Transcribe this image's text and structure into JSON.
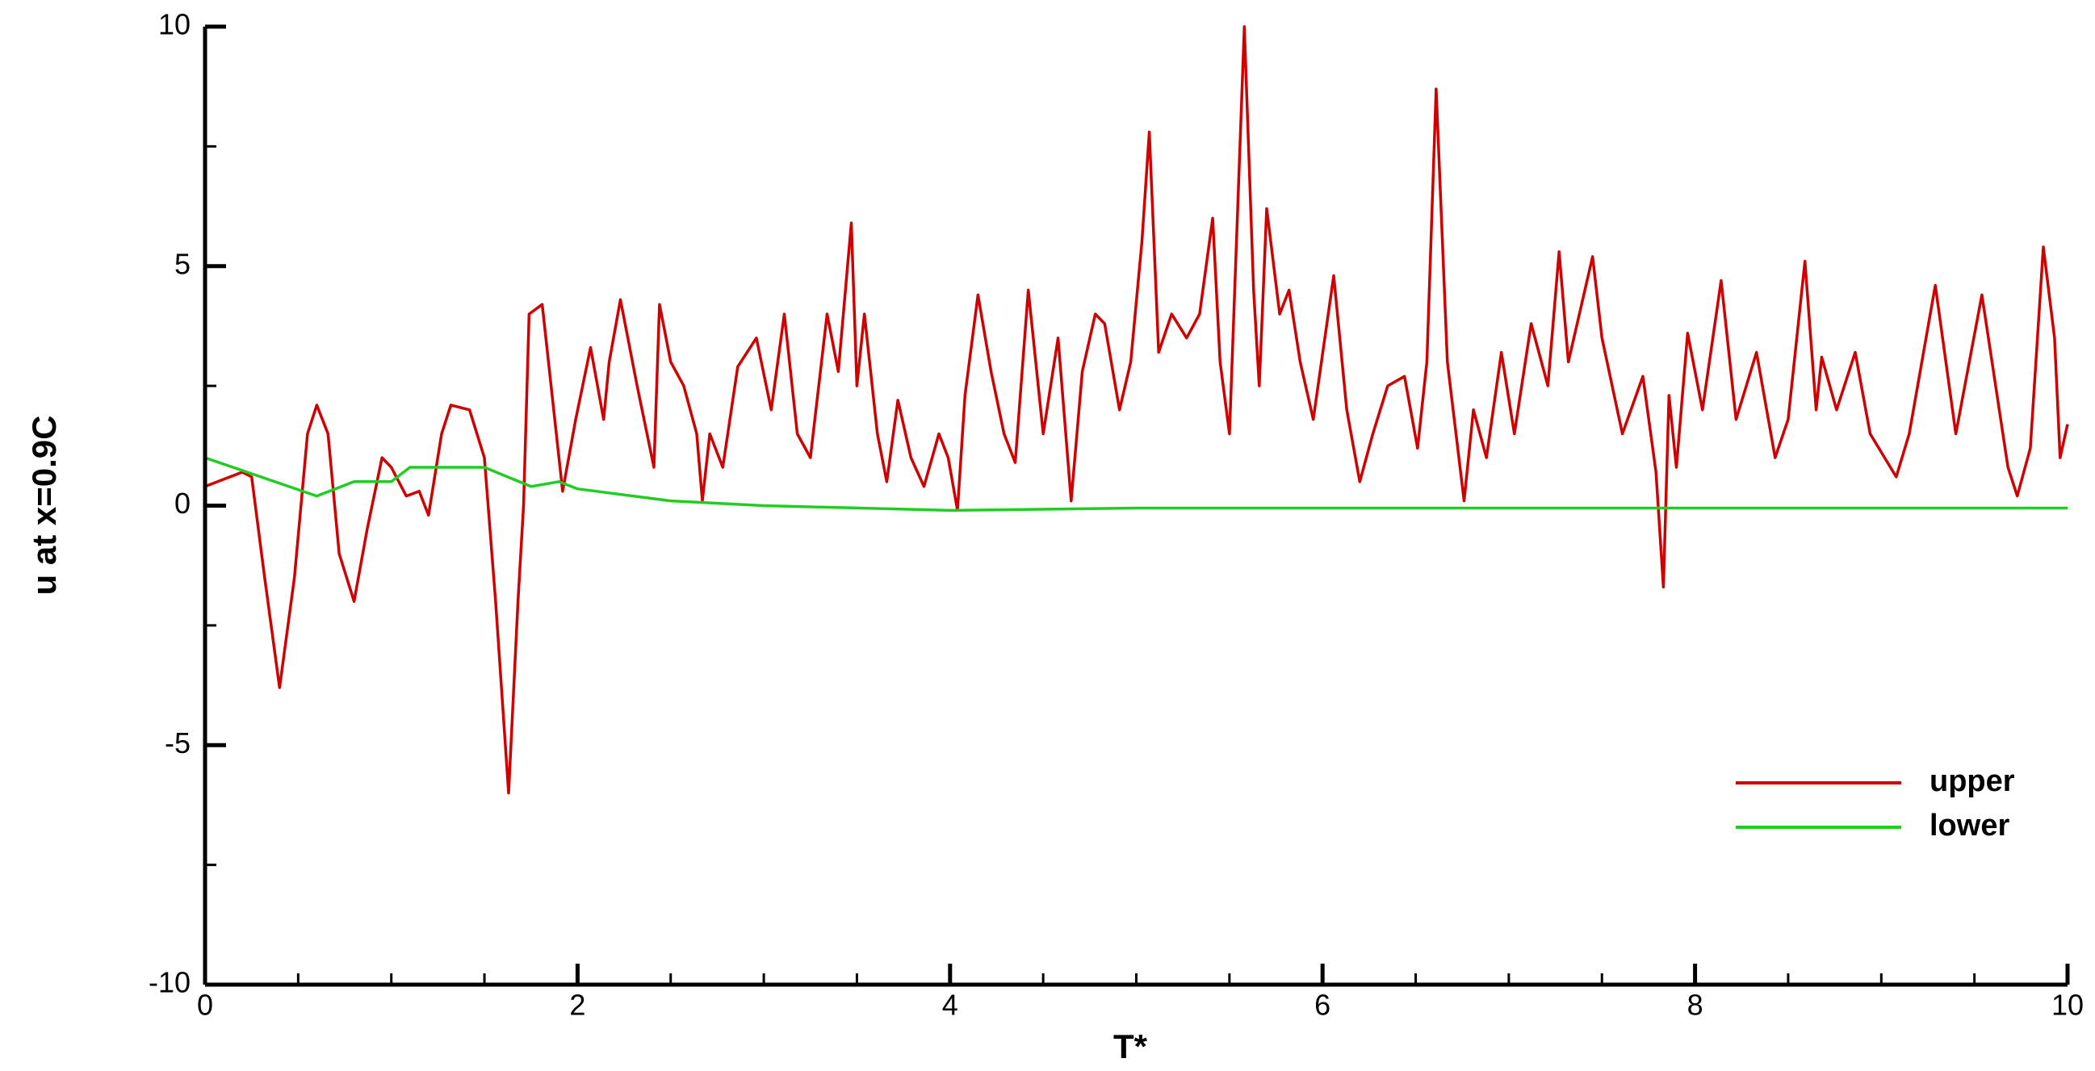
{
  "chart_data": {
    "type": "line",
    "x_label": "T*",
    "y_label": "u at x=0.9C",
    "xlim": [
      0,
      10
    ],
    "ylim": [
      -10,
      10
    ],
    "xticks": [
      0,
      2,
      4,
      6,
      8,
      10
    ],
    "yticks": [
      -10,
      -5,
      0,
      5,
      10
    ],
    "minor_xticks": [
      0.5,
      1,
      1.5,
      2.5,
      3,
      3.5,
      4.5,
      5,
      5.5,
      6.5,
      7,
      7.5,
      8.5,
      9,
      9.5
    ],
    "minor_yticks": [
      -7.5,
      -2.5,
      2.5,
      7.5
    ],
    "legend_position": "lower right",
    "series": [
      {
        "name": "upper",
        "color": "#d00000",
        "x": [
          0,
          0.2,
          0.25,
          0.32,
          0.4,
          0.48,
          0.55,
          0.6,
          0.66,
          0.72,
          0.8,
          0.87,
          0.95,
          1.0,
          1.08,
          1.15,
          1.2,
          1.27,
          1.32,
          1.42,
          1.5,
          1.56,
          1.63,
          1.68,
          1.71,
          1.74,
          1.81,
          1.92,
          1.99,
          2.07,
          2.14,
          2.17,
          2.23,
          2.32,
          2.41,
          2.44,
          2.5,
          2.57,
          2.64,
          2.67,
          2.71,
          2.78,
          2.86,
          2.96,
          3.04,
          3.11,
          3.18,
          3.25,
          3.34,
          3.4,
          3.47,
          3.5,
          3.54,
          3.61,
          3.66,
          3.72,
          3.79,
          3.86,
          3.94,
          3.99,
          4.04,
          4.08,
          4.15,
          4.22,
          4.29,
          4.35,
          4.42,
          4.5,
          4.58,
          4.65,
          4.71,
          4.78,
          4.83,
          4.91,
          4.97,
          5.03,
          5.07,
          5.12,
          5.19,
          5.27,
          5.34,
          5.41,
          5.45,
          5.5,
          5.58,
          5.63,
          5.66,
          5.7,
          5.77,
          5.82,
          5.88,
          5.95,
          6.06,
          6.13,
          6.2,
          6.27,
          6.35,
          6.44,
          6.51,
          6.56,
          6.61,
          6.67,
          6.76,
          6.81,
          6.88,
          6.96,
          7.03,
          7.12,
          7.21,
          7.27,
          7.32,
          7.45,
          7.5,
          7.61,
          7.72,
          7.79,
          7.83,
          7.86,
          7.9,
          7.96,
          8.04,
          8.14,
          8.22,
          8.33,
          8.43,
          8.5,
          8.59,
          8.65,
          8.68,
          8.76,
          8.86,
          8.94,
          9.08,
          9.15,
          9.29,
          9.4,
          9.54,
          9.68,
          9.73,
          9.8,
          9.87,
          9.93,
          9.96,
          10
        ],
        "values": [
          0.4,
          0.7,
          0.6,
          -1.5,
          -3.8,
          -1.5,
          1.5,
          2.1,
          1.5,
          -1.0,
          -2.0,
          -0.5,
          1.0,
          0.8,
          0.2,
          0.3,
          -0.2,
          1.5,
          2.1,
          2.0,
          1.0,
          -2.0,
          -6.0,
          -2.0,
          0,
          4.0,
          4.2,
          0.3,
          1.8,
          3.3,
          1.8,
          3.0,
          4.3,
          2.5,
          0.8,
          4.2,
          3.0,
          2.5,
          1.5,
          0.1,
          1.5,
          0.8,
          2.9,
          3.5,
          2.0,
          4.0,
          1.5,
          1.0,
          4.0,
          2.8,
          5.9,
          2.5,
          4.0,
          1.5,
          0.5,
          2.2,
          1.0,
          0.4,
          1.5,
          1.0,
          -0.1,
          2.3,
          4.4,
          2.8,
          1.5,
          0.9,
          4.5,
          1.5,
          3.5,
          0.1,
          2.8,
          4.0,
          3.8,
          2.0,
          3.0,
          5.5,
          7.8,
          3.2,
          4.0,
          3.5,
          4.0,
          6.0,
          3.0,
          1.5,
          10,
          4.5,
          2.5,
          6.2,
          4.0,
          4.5,
          3.0,
          1.8,
          4.8,
          2.0,
          0.5,
          1.5,
          2.5,
          2.7,
          1.2,
          3.0,
          8.7,
          3.0,
          0.1,
          2.0,
          1.0,
          3.2,
          1.5,
          3.8,
          2.5,
          5.3,
          3.0,
          5.2,
          3.5,
          1.5,
          2.7,
          0.7,
          -1.7,
          2.3,
          0.8,
          3.6,
          2.0,
          4.7,
          1.8,
          3.2,
          1.0,
          1.8,
          5.1,
          2.0,
          3.1,
          2.0,
          3.2,
          1.5,
          0.6,
          1.5,
          4.6,
          1.5,
          4.4,
          0.8,
          0.2,
          1.2,
          5.4,
          3.5,
          1.0,
          1.7
        ]
      },
      {
        "name": "lower",
        "color": "#22cc22",
        "x": [
          0,
          0.3,
          0.6,
          0.8,
          1.0,
          1.1,
          1.2,
          1.5,
          1.75,
          1.9,
          2.0,
          2.2,
          2.5,
          3,
          4,
          5,
          6,
          8,
          10
        ],
        "values": [
          1.0,
          0.6,
          0.2,
          0.5,
          0.5,
          0.8,
          0.8,
          0.8,
          0.4,
          0.5,
          0.35,
          0.25,
          0.1,
          0.0,
          -0.1,
          -0.05,
          -0.05,
          -0.05,
          -0.05
        ]
      }
    ]
  }
}
